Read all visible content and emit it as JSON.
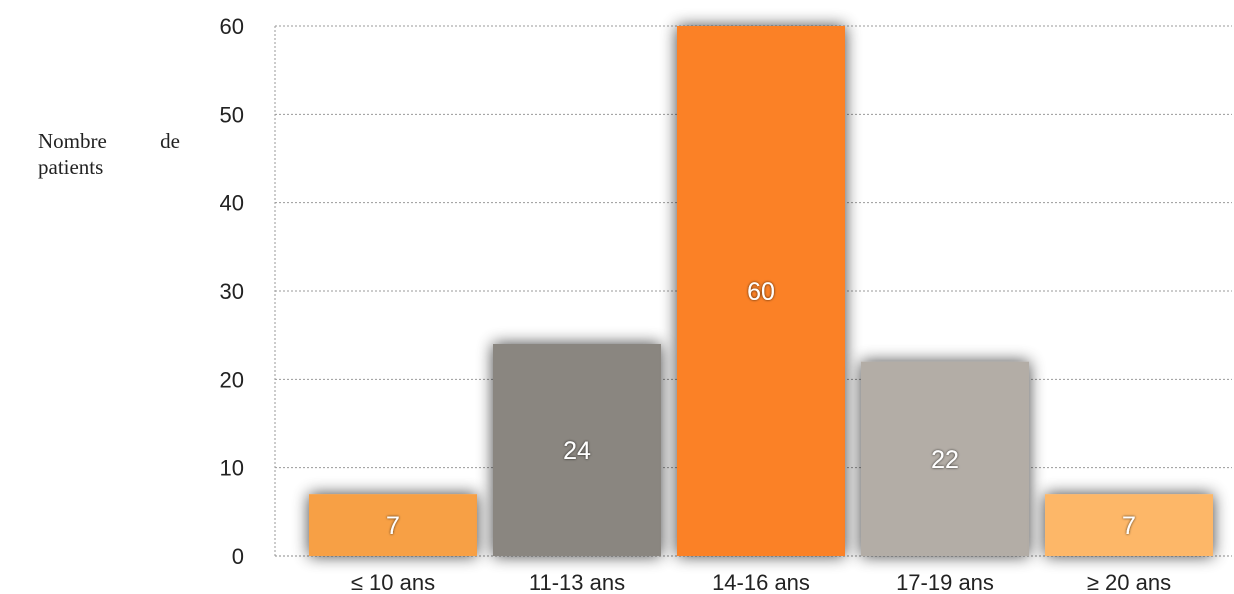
{
  "chart_data": {
    "type": "bar",
    "ylabel": "Nombre de patients",
    "xlabel": "",
    "categories": [
      "≤ 10 ans",
      "11-13 ans",
      "14-16 ans",
      "17-19 ans",
      "≥ 20 ans"
    ],
    "values": [
      7,
      24,
      60,
      22,
      7
    ],
    "data_labels": [
      "7",
      "24",
      "60",
      "22",
      "7"
    ],
    "bar_colors": [
      "#f7a045",
      "#8a8680",
      "#fb8127",
      "#b3ada6",
      "#fdb767"
    ],
    "ylim": [
      0,
      60
    ],
    "yticks": [
      0,
      10,
      20,
      30,
      40,
      50,
      60
    ],
    "grid": true,
    "legend": "none"
  }
}
